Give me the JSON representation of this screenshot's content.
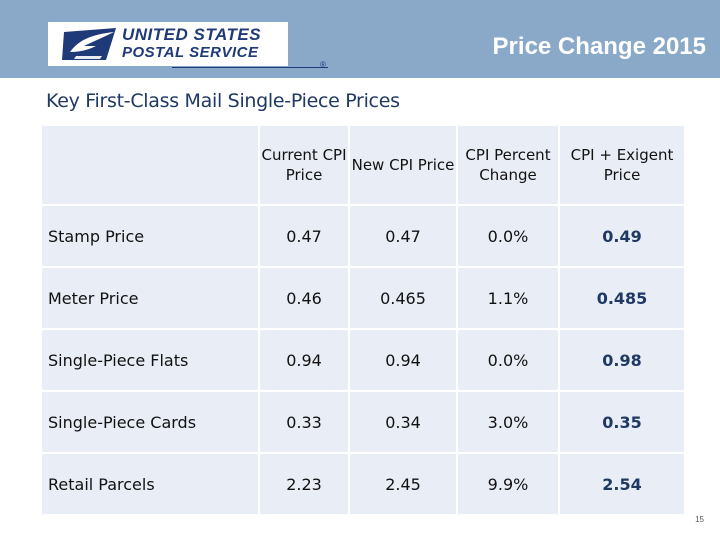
{
  "header": {
    "logo_line1": "UNITED STATES",
    "logo_line2": "POSTAL SERVICE",
    "logo_reg": "®",
    "title": "Price Change 2015",
    "bar_color": "#8aa9c9",
    "brand_color": "#1f3a78"
  },
  "subtitle": "Key First-Class Mail Single-Piece Prices",
  "table": {
    "corner": "",
    "columns": [
      "Current CPI Price",
      "New CPI Price",
      "CPI Percent Change",
      "CPI + Exigent Price"
    ],
    "rows": [
      {
        "label": "Stamp Price",
        "current": "0.47",
        "new": "0.47",
        "pct": "0.0%",
        "exigent": "0.49"
      },
      {
        "label": "Meter Price",
        "current": "0.46",
        "new": "0.465",
        "pct": "1.1%",
        "exigent": "0.485"
      },
      {
        "label": "Single-Piece Flats",
        "current": "0.94",
        "new": "0.94",
        "pct": "0.0%",
        "exigent": "0.98"
      },
      {
        "label": "Single-Piece Cards",
        "current": "0.33",
        "new": "0.34",
        "pct": "3.0%",
        "exigent": "0.35"
      },
      {
        "label": "Retail Parcels",
        "current": "2.23",
        "new": "2.45",
        "pct": "9.9%",
        "exigent": "2.54"
      }
    ]
  },
  "page_number": "15"
}
